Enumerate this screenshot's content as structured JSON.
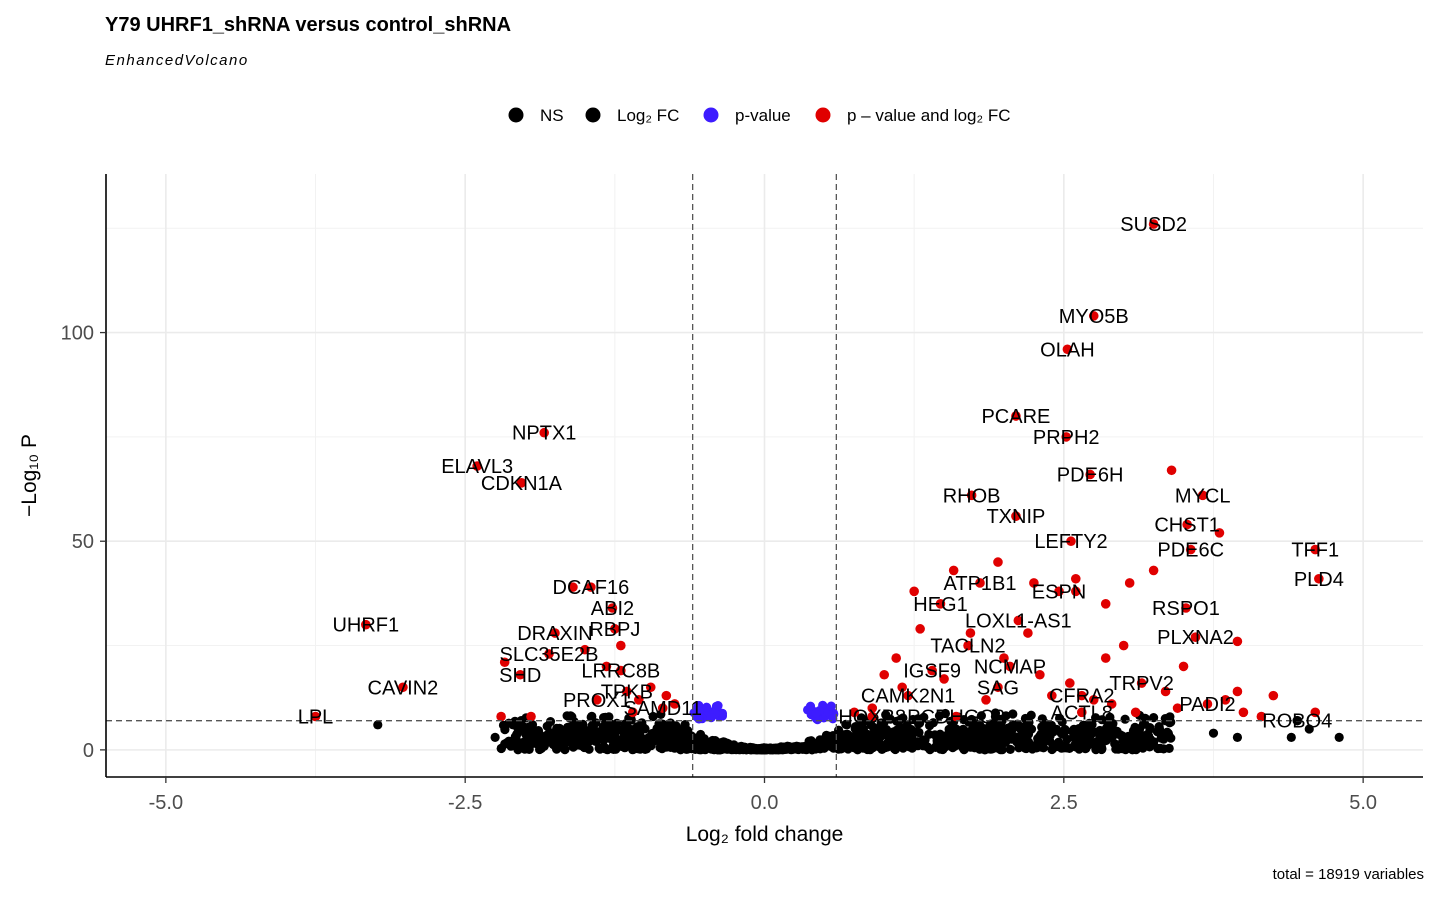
{
  "chart_data": {
    "type": "scatter",
    "title": "Y79 UHRF1_shRNA versus control_shRNA",
    "subtitle": "EnhancedVolcano",
    "xlabel": "Log₂ fold change",
    "ylabel": "−Log₁₀ P",
    "caption": "total = 18919 variables",
    "xlim": [
      -5.5,
      5.5
    ],
    "ylim": [
      -6.5,
      138
    ],
    "xticks": [
      -5.0,
      -2.5,
      0.0,
      2.5,
      5.0
    ],
    "xtick_labels": [
      "-5.0",
      "-2.5",
      "0.0",
      "2.5",
      "5.0"
    ],
    "yticks": [
      0,
      50,
      100
    ],
    "ytick_labels": [
      "0",
      "50",
      "100"
    ],
    "fc_cutoff": [
      -0.6,
      0.6
    ],
    "p_cutoff_log10": 7,
    "grid": true,
    "legend_position": "top",
    "legend": [
      {
        "label": "NS",
        "color": "#000000"
      },
      {
        "label": "Log₂ FC",
        "color": "#000000"
      },
      {
        "label": "p-value",
        "color": "#3d1cff"
      },
      {
        "label": "p – value and log₂ FC",
        "color": "#e00000"
      }
    ],
    "colors": {
      "ns": "#000000",
      "fc": "#000000",
      "p": "#3d1cff",
      "both": "#e00000",
      "cutoff_line": "#555555"
    },
    "labeled_points": [
      {
        "gene": "SUSD2",
        "x": 3.25,
        "y": 126
      },
      {
        "gene": "MYO5B",
        "x": 2.75,
        "y": 104
      },
      {
        "gene": "OLAH",
        "x": 2.53,
        "y": 96
      },
      {
        "gene": "PCARE",
        "x": 2.1,
        "y": 80
      },
      {
        "gene": "NPTX1",
        "x": -1.84,
        "y": 76
      },
      {
        "gene": "PRPH2",
        "x": 2.52,
        "y": 75
      },
      {
        "gene": "ELAVL3",
        "x": -2.4,
        "y": 68
      },
      {
        "gene": "PDE6H",
        "x": 2.72,
        "y": 66
      },
      {
        "gene": "CDKN1A",
        "x": -2.03,
        "y": 64
      },
      {
        "gene": "MYCL",
        "x": 3.66,
        "y": 61
      },
      {
        "gene": "RHOB",
        "x": 1.73,
        "y": 61
      },
      {
        "gene": "TXNIP",
        "x": 2.1,
        "y": 56
      },
      {
        "gene": "CHST1",
        "x": 3.53,
        "y": 54
      },
      {
        "gene": "LEFTY2",
        "x": 2.56,
        "y": 50
      },
      {
        "gene": "TFF1",
        "x": 4.6,
        "y": 48
      },
      {
        "gene": "PDE6C",
        "x": 3.56,
        "y": 48
      },
      {
        "gene": "PLD4",
        "x": 4.63,
        "y": 41
      },
      {
        "gene": "ATP1B1",
        "x": 1.8,
        "y": 40
      },
      {
        "gene": "DCAF16",
        "x": -1.45,
        "y": 39
      },
      {
        "gene": "ESPN",
        "x": 2.46,
        "y": 38
      },
      {
        "gene": "HEG1",
        "x": 1.47,
        "y": 35
      },
      {
        "gene": "ABI2",
        "x": -1.27,
        "y": 34
      },
      {
        "gene": "RSPO1",
        "x": 3.52,
        "y": 34
      },
      {
        "gene": "LOXL1-AS1",
        "x": 2.12,
        "y": 31
      },
      {
        "gene": "UHRF1",
        "x": -3.33,
        "y": 30
      },
      {
        "gene": "RBPJ",
        "x": -1.25,
        "y": 29
      },
      {
        "gene": "DRAXIN",
        "x": -1.75,
        "y": 28
      },
      {
        "gene": "PLXNA2",
        "x": 3.6,
        "y": 27
      },
      {
        "gene": "TACLN2",
        "x": 1.7,
        "y": 25
      },
      {
        "gene": "SLC35E2B",
        "x": -1.8,
        "y": 23
      },
      {
        "gene": "NCMAP",
        "x": 2.05,
        "y": 20
      },
      {
        "gene": "LRRC8B",
        "x": -1.2,
        "y": 19
      },
      {
        "gene": "IGSF9",
        "x": 1.4,
        "y": 19
      },
      {
        "gene": "SHD",
        "x": -2.04,
        "y": 18
      },
      {
        "gene": "TRPV2",
        "x": 3.15,
        "y": 16
      },
      {
        "gene": "CAVIN2",
        "x": -3.02,
        "y": 15
      },
      {
        "gene": "SAG",
        "x": 1.95,
        "y": 15
      },
      {
        "gene": "TPKB",
        "x": -1.15,
        "y": 14
      },
      {
        "gene": "CAMK2N1",
        "x": 1.2,
        "y": 13
      },
      {
        "gene": "CFRA2",
        "x": 2.65,
        "y": 13
      },
      {
        "gene": "PROX1",
        "x": -1.4,
        "y": 12
      },
      {
        "gene": "PADI2",
        "x": 3.7,
        "y": 11
      },
      {
        "gene": "SAMD11",
        "x": -0.85,
        "y": 10
      },
      {
        "gene": "LPL",
        "x": -3.75,
        "y": 8
      },
      {
        "gene": "ACTL8",
        "x": 2.65,
        "y": 9
      },
      {
        "gene": "PCDHGC2",
        "x": 1.6,
        "y": 8
      },
      {
        "gene": "HOXB8",
        "x": 0.9,
        "y": 8
      },
      {
        "gene": "ROBO4",
        "x": 4.45,
        "y": 7
      }
    ],
    "unlabeled_significant": [
      [
        -2.17,
        21
      ],
      [
        -1.05,
        12
      ],
      [
        -1.6,
        39
      ],
      [
        -1.2,
        25
      ],
      [
        -0.95,
        15
      ],
      [
        -0.82,
        13
      ],
      [
        -1.32,
        20
      ],
      [
        -1.5,
        24
      ],
      [
        -2.2,
        8
      ],
      [
        -1.95,
        8
      ],
      [
        -1.1,
        9
      ],
      [
        -0.75,
        11
      ],
      [
        3.4,
        67
      ],
      [
        3.8,
        52
      ],
      [
        3.25,
        43
      ],
      [
        3.05,
        40
      ],
      [
        2.6,
        41
      ],
      [
        2.85,
        35
      ],
      [
        2.6,
        38
      ],
      [
        2.25,
        40
      ],
      [
        1.95,
        45
      ],
      [
        1.58,
        43
      ],
      [
        1.72,
        28
      ],
      [
        2.2,
        28
      ],
      [
        2.85,
        22
      ],
      [
        3.0,
        25
      ],
      [
        3.95,
        26
      ],
      [
        4.0,
        9
      ],
      [
        4.25,
        13
      ],
      [
        4.15,
        8
      ],
      [
        3.35,
        14
      ],
      [
        3.5,
        20
      ],
      [
        3.85,
        12
      ],
      [
        2.3,
        18
      ],
      [
        1.25,
        38
      ],
      [
        1.3,
        29
      ],
      [
        1.1,
        22
      ],
      [
        1.0,
        18
      ],
      [
        1.5,
        17
      ],
      [
        2.4,
        13
      ],
      [
        2.9,
        11
      ],
      [
        3.1,
        9
      ],
      [
        0.9,
        10
      ],
      [
        1.15,
        15
      ],
      [
        0.75,
        9
      ],
      [
        2.0,
        22
      ],
      [
        2.55,
        16
      ],
      [
        3.45,
        10
      ],
      [
        4.6,
        9
      ],
      [
        1.85,
        12
      ],
      [
        2.75,
        12
      ],
      [
        3.95,
        14
      ]
    ],
    "unlabeled_ns": [
      [
        -3.23,
        6
      ],
      [
        4.8,
        3
      ],
      [
        4.55,
        5
      ],
      [
        4.4,
        3
      ],
      [
        3.95,
        3
      ],
      [
        3.75,
        4
      ],
      [
        3.3,
        5
      ],
      [
        3.1,
        4
      ],
      [
        2.9,
        3
      ],
      [
        -2.25,
        3
      ],
      [
        -2.05,
        5
      ],
      [
        -1.9,
        4
      ],
      [
        -2.1,
        6
      ],
      [
        -1.55,
        5
      ],
      [
        -1.3,
        3
      ],
      [
        1.6,
        5
      ],
      [
        2.2,
        4
      ],
      [
        2.7,
        5
      ]
    ]
  }
}
